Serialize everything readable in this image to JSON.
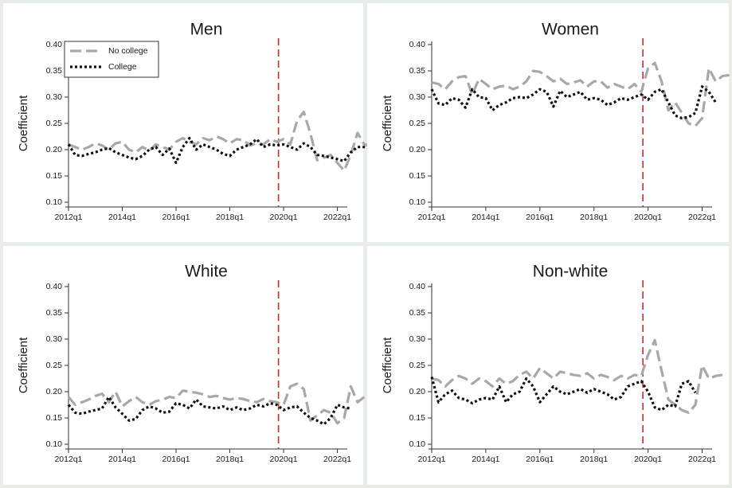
{
  "colors": {
    "no_college": "#a8a8a8",
    "college": "#111111",
    "vline": "#d62728"
  },
  "legend": {
    "no_college": "No college",
    "college": "College",
    "placement": "top-left, Men panel"
  },
  "chart_data": [
    {
      "type": "line",
      "title": "Men",
      "ylabel": "Coefficient",
      "ylim": [
        0.1,
        0.4
      ],
      "yticks": [
        "0.10",
        "0.15",
        "0.20",
        "0.25",
        "0.30",
        "0.35",
        "0.40"
      ],
      "xticks": [
        "2012q1",
        "2014q1",
        "2016q1",
        "2018q1",
        "2020q1",
        "2022q1"
      ],
      "vline": "2019q4",
      "x_start": "2012q1",
      "x_end": "2022q2",
      "series": [
        {
          "name": "No college",
          "style": "dash",
          "values": [
            0.21,
            0.205,
            0.2,
            0.205,
            0.212,
            0.208,
            0.2,
            0.212,
            0.215,
            0.2,
            0.195,
            0.205,
            0.198,
            0.21,
            0.205,
            0.2,
            0.215,
            0.222,
            0.215,
            0.21,
            0.222,
            0.218,
            0.225,
            0.22,
            0.212,
            0.22,
            0.218,
            0.208,
            0.212,
            0.21,
            0.22,
            0.215,
            0.22,
            0.21,
            0.255,
            0.272,
            0.23,
            0.18,
            0.185,
            0.19,
            0.175,
            0.16,
            0.19,
            0.232,
            0.21,
            0.208,
            0.205
          ]
        },
        {
          "name": "College",
          "style": "dot",
          "values": [
            0.21,
            0.19,
            0.188,
            0.192,
            0.195,
            0.2,
            0.203,
            0.195,
            0.19,
            0.185,
            0.182,
            0.188,
            0.2,
            0.205,
            0.19,
            0.202,
            0.175,
            0.205,
            0.222,
            0.2,
            0.21,
            0.205,
            0.2,
            0.192,
            0.188,
            0.2,
            0.205,
            0.21,
            0.22,
            0.205,
            0.21,
            0.208,
            0.21,
            0.205,
            0.2,
            0.212,
            0.205,
            0.19,
            0.188,
            0.185,
            0.182,
            0.178,
            0.195,
            0.205,
            0.205,
            0.202,
            0.2
          ]
        }
      ]
    },
    {
      "type": "line",
      "title": "Women",
      "ylabel": "Coefficient",
      "ylim": [
        0.1,
        0.4
      ],
      "yticks": [
        "0.10",
        "0.15",
        "0.20",
        "0.25",
        "0.30",
        "0.35",
        "0.40"
      ],
      "xticks": [
        "2012q1",
        "2014q1",
        "2016q1",
        "2018q1",
        "2020q1",
        "2022q1"
      ],
      "vline": "2019q4",
      "x_start": "2012q1",
      "x_end": "2022q2",
      "series": [
        {
          "name": "No college",
          "style": "dash",
          "values": [
            0.328,
            0.325,
            0.315,
            0.33,
            0.338,
            0.34,
            0.305,
            0.335,
            0.325,
            0.315,
            0.32,
            0.322,
            0.315,
            0.32,
            0.33,
            0.35,
            0.348,
            0.34,
            0.33,
            0.335,
            0.325,
            0.328,
            0.332,
            0.32,
            0.33,
            0.33,
            0.318,
            0.325,
            0.32,
            0.315,
            0.325,
            0.31,
            0.355,
            0.365,
            0.33,
            0.275,
            0.29,
            0.27,
            0.25,
            0.245,
            0.26,
            0.355,
            0.33,
            0.34,
            0.342
          ]
        },
        {
          "name": "College",
          "style": "dot",
          "values": [
            0.315,
            0.288,
            0.285,
            0.298,
            0.295,
            0.28,
            0.315,
            0.3,
            0.298,
            0.275,
            0.285,
            0.29,
            0.298,
            0.3,
            0.298,
            0.305,
            0.315,
            0.31,
            0.282,
            0.312,
            0.3,
            0.305,
            0.31,
            0.295,
            0.298,
            0.295,
            0.285,
            0.29,
            0.298,
            0.295,
            0.3,
            0.305,
            0.295,
            0.31,
            0.315,
            0.29,
            0.265,
            0.26,
            0.262,
            0.27,
            0.32,
            0.31,
            0.29
          ]
        }
      ]
    },
    {
      "type": "line",
      "title": "White",
      "ylabel": "Coefficient",
      "ylim": [
        0.1,
        0.4
      ],
      "yticks": [
        "0.10",
        "0.15",
        "0.20",
        "0.25",
        "0.30",
        "0.35",
        "0.40"
      ],
      "xticks": [
        "2012q1",
        "2014q1",
        "2016q1",
        "2018q1",
        "2020q1",
        "2022q1"
      ],
      "vline": "2019q4",
      "x_start": "2012q1",
      "x_end": "2022q2",
      "series": [
        {
          "name": "No college",
          "style": "dash",
          "values": [
            0.19,
            0.175,
            0.18,
            0.185,
            0.192,
            0.196,
            0.18,
            0.2,
            0.172,
            0.182,
            0.19,
            0.18,
            0.175,
            0.182,
            0.185,
            0.19,
            0.188,
            0.202,
            0.2,
            0.198,
            0.195,
            0.19,
            0.192,
            0.188,
            0.185,
            0.188,
            0.186,
            0.182,
            0.18,
            0.186,
            0.182,
            0.18,
            0.175,
            0.21,
            0.215,
            0.205,
            0.145,
            0.155,
            0.165,
            0.16,
            0.14,
            0.15,
            0.21,
            0.18,
            0.19
          ]
        },
        {
          "name": "College",
          "style": "dot",
          "values": [
            0.175,
            0.16,
            0.158,
            0.162,
            0.165,
            0.168,
            0.19,
            0.17,
            0.158,
            0.145,
            0.148,
            0.165,
            0.172,
            0.168,
            0.16,
            0.162,
            0.178,
            0.175,
            0.168,
            0.185,
            0.172,
            0.17,
            0.168,
            0.172,
            0.165,
            0.17,
            0.165,
            0.168,
            0.175,
            0.172,
            0.178,
            0.175,
            0.165,
            0.17,
            0.172,
            0.16,
            0.15,
            0.145,
            0.138,
            0.15,
            0.175,
            0.17,
            0.168
          ]
        }
      ]
    },
    {
      "type": "line",
      "title": "Non-white",
      "ylabel": "Coefficient",
      "ylim": [
        0.1,
        0.4
      ],
      "yticks": [
        "0.10",
        "0.15",
        "0.20",
        "0.25",
        "0.30",
        "0.35",
        "0.40"
      ],
      "xticks": [
        "2012q1",
        "2014q1",
        "2016q1",
        "2018q1",
        "2020q1",
        "2022q1"
      ],
      "vline": "2019q4",
      "x_start": "2012q1",
      "x_end": "2022q2",
      "series": [
        {
          "name": "No college",
          "style": "dash",
          "values": [
            0.225,
            0.222,
            0.21,
            0.222,
            0.23,
            0.225,
            0.215,
            0.225,
            0.22,
            0.21,
            0.225,
            0.215,
            0.22,
            0.232,
            0.238,
            0.225,
            0.245,
            0.235,
            0.225,
            0.238,
            0.235,
            0.232,
            0.23,
            0.235,
            0.225,
            0.232,
            0.228,
            0.222,
            0.23,
            0.225,
            0.232,
            0.23,
            0.27,
            0.298,
            0.24,
            0.185,
            0.175,
            0.165,
            0.16,
            0.175,
            0.25,
            0.225,
            0.23,
            0.232
          ]
        },
        {
          "name": "College",
          "style": "dot",
          "values": [
            0.228,
            0.18,
            0.195,
            0.202,
            0.188,
            0.185,
            0.178,
            0.185,
            0.188,
            0.185,
            0.21,
            0.18,
            0.195,
            0.2,
            0.225,
            0.21,
            0.18,
            0.195,
            0.21,
            0.2,
            0.195,
            0.2,
            0.205,
            0.198,
            0.205,
            0.2,
            0.195,
            0.185,
            0.19,
            0.21,
            0.215,
            0.22,
            0.2,
            0.17,
            0.165,
            0.175,
            0.172,
            0.215,
            0.22,
            0.198
          ]
        }
      ]
    }
  ]
}
